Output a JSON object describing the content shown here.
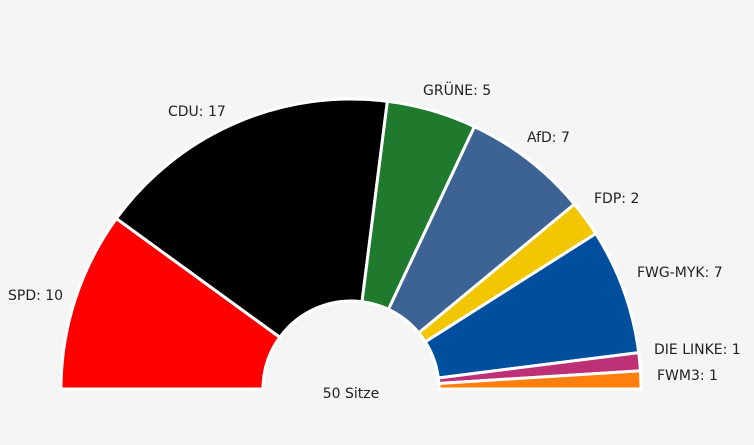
{
  "chart_data": {
    "type": "pie",
    "shape": "semicircle-parliament",
    "total_seats": 50,
    "total_label": "50 Sitze",
    "parties": [
      {
        "name": "SPD",
        "seats": 10,
        "label": "SPD: 10",
        "color": "#ff0000"
      },
      {
        "name": "CDU",
        "seats": 17,
        "label": "CDU: 17",
        "color": "#000000"
      },
      {
        "name": "GRÜNE",
        "seats": 5,
        "label": "GRÜNE: 5",
        "color": "#1f7a2e"
      },
      {
        "name": "AfD",
        "seats": 7,
        "label": "AfD: 7",
        "color": "#3d6394"
      },
      {
        "name": "FDP",
        "seats": 2,
        "label": "FDP: 2",
        "color": "#f2c600"
      },
      {
        "name": "FWG-MYK",
        "seats": 7,
        "label": "FWG-MYK: 7",
        "color": "#004f9f"
      },
      {
        "name": "DIE LINKE",
        "seats": 1,
        "label": "DIE LINKE: 1",
        "color": "#be3075"
      },
      {
        "name": "FWM3",
        "seats": 1,
        "label": "FWM3: 1",
        "color": "#ff7f0e"
      }
    ]
  }
}
